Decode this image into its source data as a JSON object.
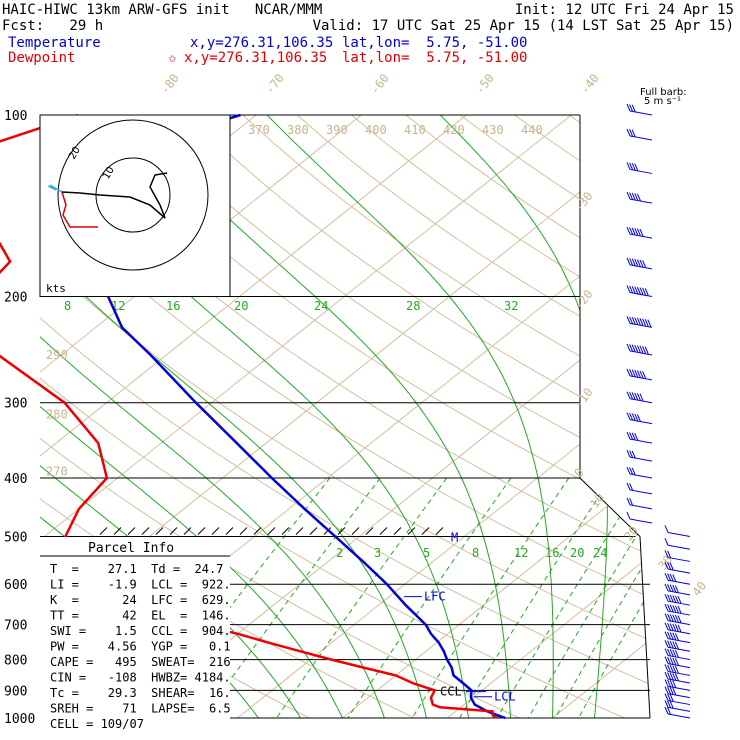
{
  "header": {
    "line1_left": "HAIC-HIWC 13km ARW-GFS init   NCAR/MMM",
    "line1_right": "Init: 12 UTC Fri 24 Apr 15",
    "line2_left": "Fcst:   29 h",
    "line2_right": "Valid: 17 UTC Sat 25 Apr 15 (14 LST Sat 25 Apr 15)",
    "temp_label": "Temperature",
    "temp_xy": "x,y=276.31,106.35",
    "temp_latlon": "lat,lon=  5.75, -51.00",
    "dew_label": "Dewpoint",
    "dew_marker": "✩",
    "dew_xy": "x,y=276.31,106.35",
    "dew_latlon": "lat,lon=  5.75, -51.00",
    "barb_title1": "Full barb:",
    "barb_title2": "5 m s⁻¹"
  },
  "colors": {
    "temperature": "#0000dd",
    "dewpoint": "#ee0000",
    "adiabat": "#d2c0a0",
    "mixing": "#22aa22"
  },
  "chart_data": {
    "type": "line",
    "title": "",
    "xlabel": "",
    "ylabel": "",
    "pressure_levels": [
      "100",
      "200",
      "300",
      "400",
      "500",
      "600",
      "700",
      "800",
      "900",
      "1000"
    ],
    "temp_ticks": [
      "-80",
      "-70",
      "-60",
      "-50",
      "-40",
      "-30",
      "-20",
      "-10",
      "0",
      "10",
      "20",
      "30",
      "40"
    ],
    "theta_labels": [
      "370",
      "380",
      "390",
      "400",
      "410",
      "420",
      "430",
      "440"
    ],
    "theta_left": [
      "290",
      "280",
      "270"
    ],
    "mixing_upper": [
      "8",
      "12",
      "16",
      "20",
      "24",
      "28",
      "32"
    ],
    "mixing_lower": [
      "2",
      "3",
      "5",
      "8",
      "12",
      "16",
      "20",
      "24"
    ],
    "series": [
      {
        "name": "Temperature",
        "p": [
          1000,
          990,
          975,
          960,
          950,
          925,
          900,
          875,
          850,
          825,
          800,
          775,
          750,
          725,
          700,
          650,
          600,
          550,
          500,
          450,
          400,
          350,
          300,
          250,
          225,
          200,
          175,
          150,
          140,
          125,
          115,
          105,
          100
        ],
        "t": [
          25.5,
          24.5,
          23,
          21.8,
          21,
          19.8,
          19,
          17.3,
          15.5,
          14.4,
          13,
          11.7,
          10.2,
          8.4,
          6.8,
          2.6,
          -1.7,
          -6.7,
          -12.3,
          -18.5,
          -25.3,
          -32.8,
          -41.5,
          -51.5,
          -57.5,
          -62.5,
          -69.5,
          -75.5,
          -78,
          -80,
          -78,
          -74,
          -71.5
        ]
      },
      {
        "name": "Dewpoint",
        "p": [
          1000,
          990,
          975,
          960,
          950,
          925,
          900,
          875,
          850,
          825,
          800,
          775,
          750,
          725,
          700,
          650,
          600,
          550,
          500,
          450,
          400,
          350,
          300,
          250,
          225,
          200,
          175,
          150,
          140,
          125,
          115,
          105,
          100
        ],
        "t": [
          24.7,
          24,
          23.5,
          18,
          17,
          16,
          15.5,
          12.5,
          10,
          6,
          2,
          -2,
          -6,
          -10,
          -15,
          -20,
          -27,
          -34,
          -38,
          -40,
          -41,
          -46,
          -54,
          -66,
          -72,
          -75,
          -76,
          -83,
          -90,
          -95,
          -93,
          -89,
          -87
        ]
      }
    ],
    "levels": {
      "EL": "EL",
      "LFC": "LFC",
      "CCL": "CCL",
      "LCL": "LCL",
      "M": "M"
    },
    "wind_barbs": [
      {
        "p": 100,
        "dir": 250,
        "spd": 3
      },
      {
        "p": 110,
        "dir": 250,
        "spd": 3
      },
      {
        "p": 125,
        "dir": 260,
        "spd": 4
      },
      {
        "p": 140,
        "dir": 260,
        "spd": 5
      },
      {
        "p": 160,
        "dir": 265,
        "spd": 6
      },
      {
        "p": 180,
        "dir": 270,
        "spd": 7
      },
      {
        "p": 200,
        "dir": 270,
        "spd": 8
      },
      {
        "p": 225,
        "dir": 270,
        "spd": 9
      },
      {
        "p": 250,
        "dir": 270,
        "spd": 8
      },
      {
        "p": 275,
        "dir": 270,
        "spd": 7
      },
      {
        "p": 300,
        "dir": 270,
        "spd": 6
      },
      {
        "p": 325,
        "dir": 275,
        "spd": 5
      },
      {
        "p": 350,
        "dir": 280,
        "spd": 4
      },
      {
        "p": 375,
        "dir": 285,
        "spd": 3
      },
      {
        "p": 400,
        "dir": 290,
        "spd": 3
      },
      {
        "p": 425,
        "dir": 300,
        "spd": 2
      },
      {
        "p": 450,
        "dir": 310,
        "spd": 2
      },
      {
        "p": 475,
        "dir": 320,
        "spd": 1
      },
      {
        "p": 500,
        "dir": 330,
        "spd": 1
      },
      {
        "p": 525,
        "dir": 60,
        "spd": 1
      },
      {
        "p": 550,
        "dir": 70,
        "spd": 2
      },
      {
        "p": 575,
        "dir": 80,
        "spd": 3
      },
      {
        "p": 600,
        "dir": 85,
        "spd": 4
      },
      {
        "p": 625,
        "dir": 90,
        "spd": 5
      },
      {
        "p": 650,
        "dir": 90,
        "spd": 6
      },
      {
        "p": 675,
        "dir": 90,
        "spd": 6
      },
      {
        "p": 700,
        "dir": 90,
        "spd": 6
      },
      {
        "p": 725,
        "dir": 85,
        "spd": 6
      },
      {
        "p": 750,
        "dir": 80,
        "spd": 5
      },
      {
        "p": 775,
        "dir": 80,
        "spd": 5
      },
      {
        "p": 800,
        "dir": 75,
        "spd": 5
      },
      {
        "p": 825,
        "dir": 75,
        "spd": 5
      },
      {
        "p": 850,
        "dir": 70,
        "spd": 5
      },
      {
        "p": 875,
        "dir": 70,
        "spd": 5
      },
      {
        "p": 900,
        "dir": 70,
        "spd": 4
      },
      {
        "p": 925,
        "dir": 65,
        "spd": 4
      },
      {
        "p": 950,
        "dir": 60,
        "spd": 3
      },
      {
        "p": 975,
        "dir": 60,
        "spd": 3
      },
      {
        "p": 1000,
        "dir": 55,
        "spd": 2
      }
    ],
    "hodograph": {
      "rings": [
        "10",
        "20"
      ],
      "kts_label": "kts"
    }
  },
  "parcel": {
    "title": "Parcel Info",
    "rows": [
      "T  =    27.1  Td =  24.7",
      "LI =    -1.9  LCL =  922.",
      "K  =      24  LFC =  629.",
      "TT =      42  EL  =  146.",
      "SWI =    1.5  CCL =  904.",
      "PW =    4.56  YGP =   0.1",
      "CAPE =   495  SWEAT=  216",
      "CIN =   -108  HWBZ= 4184.",
      "Tc =    29.3  SHEAR=  16.",
      "SREH =    71  LAPSE=  6.5",
      "CELL = 109/07"
    ]
  }
}
